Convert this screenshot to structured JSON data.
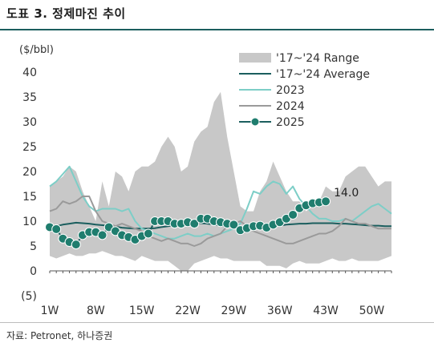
{
  "header": {
    "title": "도표 3. 정제마진 추이"
  },
  "footer": {
    "source": "자료: Petronet, 하나증권"
  },
  "chart_data": {
    "type": "line",
    "title": "",
    "ylabel": "($/bbl)",
    "xlabel": "",
    "ylim": [
      -5,
      40
    ],
    "yticks": [
      -5,
      0,
      5,
      10,
      15,
      20,
      25,
      30,
      35,
      40
    ],
    "ytick_labels": [
      "(5)",
      "0",
      "5",
      "10",
      "15",
      "20",
      "25",
      "30",
      "35",
      "40"
    ],
    "xlim": [
      1,
      53
    ],
    "xticks": [
      1,
      8,
      15,
      22,
      29,
      36,
      43,
      50
    ],
    "xtick_labels": [
      "1W",
      "8W",
      "15W",
      "22W",
      "29W",
      "36W",
      "43W",
      "50W"
    ],
    "grid": false,
    "legend_position": "top-right",
    "range_band": {
      "name": "'17~'24 Range",
      "color": "#c8c8c8",
      "x": [
        1,
        2,
        3,
        4,
        5,
        6,
        7,
        8,
        9,
        10,
        11,
        12,
        13,
        14,
        15,
        16,
        17,
        18,
        19,
        20,
        21,
        22,
        23,
        24,
        25,
        26,
        27,
        28,
        29,
        30,
        31,
        32,
        33,
        34,
        35,
        36,
        37,
        38,
        39,
        40,
        41,
        42,
        43,
        44,
        45,
        46,
        47,
        48,
        49,
        50,
        51,
        52,
        53
      ],
      "high": [
        17,
        18,
        19,
        21,
        20,
        16,
        13,
        10,
        18,
        13,
        20,
        19,
        16,
        20,
        21,
        21,
        22,
        25,
        27,
        25,
        20,
        21,
        26,
        28,
        29,
        34,
        36,
        27,
        20,
        13,
        12,
        12,
        16,
        18,
        22,
        19,
        16,
        14,
        14,
        12,
        13,
        14,
        17,
        16,
        16,
        19,
        20,
        21,
        21,
        19,
        17,
        18,
        18
      ],
      "low": [
        3,
        2.5,
        3,
        3.5,
        3,
        3,
        3.5,
        3.5,
        4,
        3.5,
        3,
        3,
        2.5,
        2,
        3,
        2.5,
        2,
        2,
        2,
        1,
        0,
        0,
        1.5,
        2,
        2.5,
        3,
        2.5,
        2.5,
        2,
        2,
        2,
        2,
        2,
        1,
        1,
        1,
        0.5,
        1.5,
        2,
        1.5,
        1.5,
        1.5,
        2,
        2.5,
        2,
        2,
        2.5,
        2,
        2,
        2,
        2,
        2.5,
        3
      ]
    },
    "series": [
      {
        "name": "'17~'24 Average",
        "color": "#1b5e5e",
        "width": 2,
        "marker": false,
        "x": [
          1,
          2,
          3,
          4,
          5,
          6,
          7,
          8,
          9,
          10,
          11,
          12,
          13,
          14,
          15,
          16,
          17,
          18,
          19,
          20,
          21,
          22,
          23,
          24,
          25,
          26,
          27,
          28,
          29,
          30,
          31,
          32,
          33,
          34,
          35,
          36,
          37,
          38,
          39,
          40,
          41,
          42,
          43,
          44,
          45,
          46,
          47,
          48,
          49,
          50,
          51,
          52,
          53
        ],
        "values": [
          9,
          9,
          9.3,
          9.5,
          9.7,
          9.6,
          9.5,
          9.3,
          9.2,
          9.1,
          8.9,
          8.7,
          8.6,
          8.5,
          8.5,
          8.5,
          8.6,
          8.8,
          9,
          9.2,
          9.5,
          9.6,
          9.6,
          9.6,
          9.5,
          9.3,
          9.1,
          8.9,
          8.8,
          8.7,
          8.7,
          8.7,
          8.8,
          8.9,
          9,
          9.1,
          9.3,
          9.4,
          9.5,
          9.5,
          9.6,
          9.6,
          9.6,
          9.6,
          9.5,
          9.5,
          9.4,
          9.3,
          9.2,
          9.1,
          9.1,
          9,
          9
        ]
      },
      {
        "name": "2023",
        "color": "#7dcec7",
        "width": 2,
        "marker": false,
        "x": [
          1,
          2,
          3,
          4,
          5,
          6,
          7,
          8,
          9,
          10,
          11,
          12,
          13,
          14,
          15,
          16,
          17,
          18,
          19,
          20,
          21,
          22,
          23,
          24,
          25,
          26,
          27,
          28,
          29,
          30,
          31,
          32,
          33,
          34,
          35,
          36,
          37,
          38,
          39,
          40,
          41,
          42,
          43,
          44,
          45,
          46,
          47,
          48,
          49,
          50,
          51,
          52,
          53
        ],
        "values": [
          17,
          18,
          19.5,
          21,
          18,
          15,
          13,
          12,
          12.5,
          12.5,
          12.5,
          12,
          12.5,
          10,
          8.5,
          8,
          7.5,
          7,
          6.5,
          6.5,
          7,
          7.5,
          7,
          7,
          7.5,
          7,
          7.5,
          8,
          8.5,
          9.5,
          12.5,
          16,
          15.5,
          17,
          18,
          17.5,
          15.5,
          17,
          14.5,
          13,
          11.5,
          10.5,
          10.5,
          10,
          10,
          10.5,
          10,
          11,
          12,
          13,
          13.5,
          12.5,
          11.5
        ]
      },
      {
        "name": "2024",
        "color": "#9a9a9a",
        "width": 2,
        "marker": false,
        "x": [
          1,
          2,
          3,
          4,
          5,
          6,
          7,
          8,
          9,
          10,
          11,
          12,
          13,
          14,
          15,
          16,
          17,
          18,
          19,
          20,
          21,
          22,
          23,
          24,
          25,
          26,
          27,
          28,
          29,
          30,
          31,
          32,
          33,
          34,
          35,
          36,
          37,
          38,
          39,
          40,
          41,
          42,
          43,
          44,
          45,
          46,
          47,
          48,
          49,
          50,
          51,
          52,
          53
        ],
        "values": [
          12,
          12.5,
          14,
          13.5,
          14,
          15,
          15,
          12,
          10,
          9.5,
          9,
          9.5,
          9,
          8.5,
          8,
          7,
          6.5,
          6,
          6.5,
          6,
          5.5,
          5.5,
          5,
          5.5,
          6.5,
          7,
          7.5,
          9,
          9.5,
          10,
          9,
          8,
          7.5,
          7,
          6.5,
          6,
          5.5,
          5.5,
          6,
          6.5,
          7,
          7.5,
          7.5,
          8,
          9,
          10.5,
          10,
          9.5,
          9.5,
          9,
          8.5,
          8.5,
          8.5
        ]
      },
      {
        "name": "2025",
        "color": "#1b5e5e",
        "marker_color": "#1f7d6e",
        "width": 2,
        "marker": true,
        "x": [
          1,
          2,
          3,
          4,
          5,
          6,
          7,
          8,
          9,
          10,
          11,
          12,
          13,
          14,
          15,
          16,
          17,
          18,
          19,
          20,
          21,
          22,
          23,
          24,
          25,
          26,
          27,
          28,
          29,
          30,
          31,
          32,
          33,
          34,
          35,
          36,
          37,
          38,
          39,
          40,
          41,
          42,
          43
        ],
        "values": [
          8.8,
          8.4,
          6.5,
          5.8,
          5.3,
          7.2,
          7.8,
          7.8,
          7.2,
          8.8,
          8,
          7.2,
          6.8,
          6.3,
          7,
          7.5,
          10,
          10,
          10,
          9.5,
          9.5,
          9.8,
          9.5,
          10.5,
          10.5,
          10,
          9.8,
          9.5,
          9.3,
          8.2,
          8.6,
          9,
          9.1,
          8.7,
          9.3,
          9.8,
          10.5,
          11.3,
          12.6,
          13.2,
          13.6,
          13.8,
          14
        ]
      }
    ],
    "annotations": [
      {
        "text": "14.0",
        "x": 43,
        "y": 14.0
      }
    ]
  }
}
